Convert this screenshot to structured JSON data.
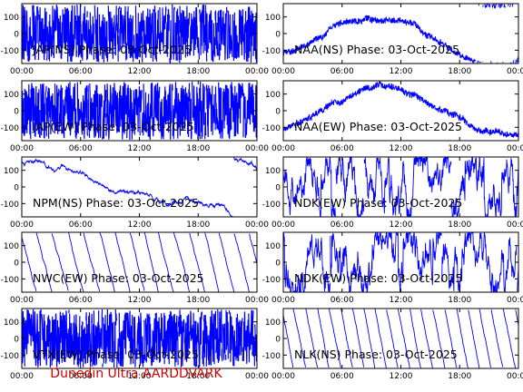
{
  "footer": "Dunedin Ultra AARDDVARK",
  "colors": {
    "trace": "#0000ff",
    "axis": "#000000",
    "footer": "#cc0000",
    "background": "#ffffff"
  },
  "chart_data": [
    {
      "type": "line",
      "title": "JAP(NS) Phase: 03-Oct-2025",
      "x_ticks": [
        "00:00",
        "06:00",
        "12:00",
        "18:00",
        "00:00"
      ],
      "y_ticks": [
        100,
        0,
        -100
      ],
      "ylim": [
        -180,
        180
      ],
      "xlim_hours": [
        0,
        24
      ],
      "style": "dense",
      "series": [
        {
          "values": []
        }
      ]
    },
    {
      "type": "line",
      "title": "NAA(NS) Phase: 03-Oct-2025",
      "x_ticks": [
        "00:00",
        "06:00",
        "12:00",
        "18:00",
        "00:00"
      ],
      "y_ticks": [
        100,
        0,
        -100
      ],
      "ylim": [
        -180,
        180
      ],
      "xlim_hours": [
        0,
        24
      ],
      "style": "curve",
      "series": [
        {
          "values": []
        }
      ]
    },
    {
      "type": "line",
      "title": "JAP(EW) Phase: 03-Oct-2025",
      "x_ticks": [
        "00:00",
        "06:00",
        "12:00",
        "18:00",
        "00:00"
      ],
      "y_ticks": [
        100,
        0,
        -100
      ],
      "ylim": [
        -180,
        180
      ],
      "xlim_hours": [
        0,
        24
      ],
      "style": "dense",
      "series": [
        {
          "values": []
        }
      ]
    },
    {
      "type": "line",
      "title": "NAA(EW) Phase: 03-Oct-2025",
      "x_ticks": [
        "00:00",
        "06:00",
        "12:00",
        "18:00",
        "00:00"
      ],
      "y_ticks": [
        100,
        0,
        -100
      ],
      "ylim": [
        -180,
        180
      ],
      "xlim_hours": [
        0,
        24
      ],
      "style": "curve",
      "series": [
        {
          "values": []
        }
      ]
    },
    {
      "type": "line",
      "title": "NPM(NS) Phase: 03-Oct-2025",
      "x_ticks": [
        "00:00",
        "06:00",
        "12:00",
        "18:00",
        "00:00"
      ],
      "y_ticks": [
        100,
        0,
        -100
      ],
      "ylim": [
        -180,
        180
      ],
      "xlim_hours": [
        0,
        24
      ],
      "style": "drift",
      "series": [
        {
          "values": []
        }
      ]
    },
    {
      "type": "line",
      "title": "NDK(EW) Phase: 03-Oct-2025",
      "x_ticks": [
        "00:00",
        "06:00",
        "12:00",
        "18:00",
        "00:00"
      ],
      "y_ticks": [
        100,
        0,
        -100
      ],
      "ylim": [
        -180,
        180
      ],
      "xlim_hours": [
        0,
        24
      ],
      "style": "noise",
      "series": [
        {
          "values": []
        }
      ]
    },
    {
      "type": "line",
      "title": "NWC(EW) Phase: 03-Oct-2025",
      "x_ticks": [
        "00:00",
        "06:00",
        "12:00",
        "18:00",
        "00:00"
      ],
      "y_ticks": [
        100,
        0,
        -100
      ],
      "ylim": [
        -180,
        180
      ],
      "xlim_hours": [
        0,
        24
      ],
      "style": "saw",
      "series": [
        {
          "values": []
        }
      ]
    },
    {
      "type": "line",
      "title": "NDK(EW) Phase: 03-Oct-2025",
      "x_ticks": [
        "00:00",
        "06:00",
        "12:00",
        "18:00",
        "00:00"
      ],
      "y_ticks": [
        100,
        0,
        -100
      ],
      "ylim": [
        -180,
        180
      ],
      "xlim_hours": [
        0,
        24
      ],
      "style": "noise",
      "series": [
        {
          "values": []
        }
      ]
    },
    {
      "type": "line",
      "title": "VTX(EW) Phase: 03-Oct-2025",
      "x_ticks": [
        "00:00",
        "06:00",
        "12:00",
        "18:00",
        "00:00"
      ],
      "y_ticks": [
        100,
        0,
        -100
      ],
      "ylim": [
        -180,
        180
      ],
      "xlim_hours": [
        0,
        24
      ],
      "style": "dense",
      "series": [
        {
          "values": []
        }
      ]
    },
    {
      "type": "line",
      "title": "NLK(NS) Phase: 03-Oct-2025",
      "x_ticks": [
        "00:00",
        "06:00",
        "12:00",
        "18:00",
        "00:00"
      ],
      "y_ticks": [
        100,
        0,
        -100
      ],
      "ylim": [
        -180,
        180
      ],
      "xlim_hours": [
        0,
        24
      ],
      "style": "saw",
      "series": [
        {
          "values": []
        }
      ]
    }
  ]
}
